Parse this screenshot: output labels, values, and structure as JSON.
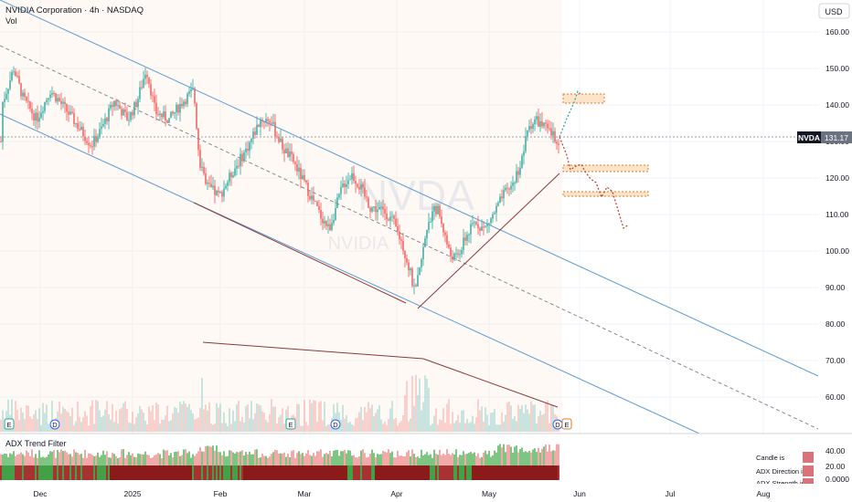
{
  "header": {
    "symbol_title": "NVIDIA Corporation · 4h · NASDAQ",
    "vol_label": "Vol",
    "currency": "USD"
  },
  "price_tag": {
    "symbol": "NVDA",
    "value": "131.17"
  },
  "watermark": {
    "ticker": "NVDA",
    "name": "NVIDIA"
  },
  "colors": {
    "up": "#26a69a",
    "down": "#ef5350",
    "channel": "#5b9bd5",
    "trend": "#8b3a3a",
    "marker": "#e07b2a",
    "candle_bg": "#f3c9a0"
  },
  "chart_data": {
    "type": "candlestick",
    "price_range": [
      50,
      165
    ],
    "y_ticks": [
      160,
      150,
      140,
      130,
      120,
      110,
      100,
      90,
      80,
      70,
      60
    ],
    "x_ticks": [
      "Dec",
      "2025",
      "Feb",
      "Mar",
      "Apr",
      "May",
      "Jun",
      "Jul",
      "Aug"
    ],
    "events": [
      "E",
      "D",
      "E",
      "D",
      "D",
      "E"
    ],
    "last_price": 131.17,
    "projection_levels": [
      141,
      122,
      115
    ]
  },
  "adx_panel": {
    "title": "ADX Trend Filter",
    "ticks": [
      "40.00",
      "20.00",
      "0.0000"
    ],
    "legend": [
      "Candle is",
      "ADX Direction is",
      "ADX Strength is"
    ]
  }
}
